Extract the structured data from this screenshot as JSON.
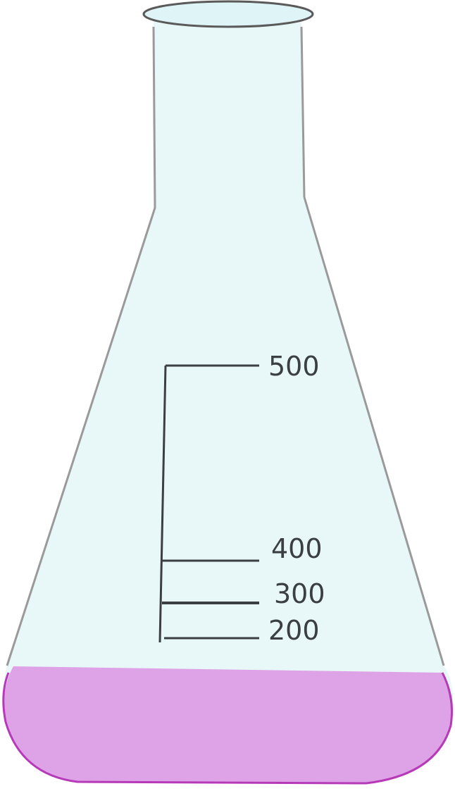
{
  "flask": {
    "glass_color": "#e8f7f7",
    "outline_color": "#9a9a9a",
    "rim_color": "#dff4f6",
    "liquid_color": "#dea2e6",
    "liquid_edge_color": "#b63ab8",
    "scale_color": "#3a3f44"
  },
  "graduations": [
    {
      "label": "500"
    },
    {
      "label": "400"
    },
    {
      "label": "300"
    },
    {
      "label": "200"
    }
  ]
}
